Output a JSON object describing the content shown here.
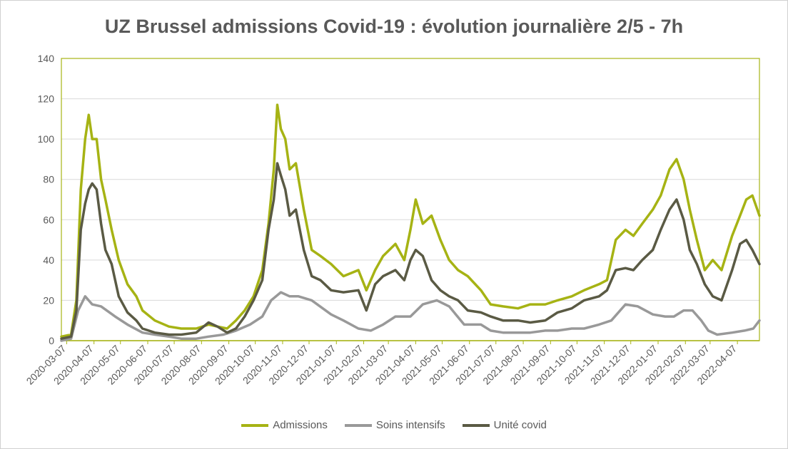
{
  "chart_data": {
    "type": "line",
    "title": "UZ Brussel admissions Covid-19 : évolution journalière 2/5 - 7h",
    "xlabel": "",
    "ylabel": "",
    "ylim": [
      0,
      140
    ],
    "yticks": [
      0,
      20,
      40,
      60,
      80,
      100,
      120,
      140
    ],
    "xlim": [
      "2020-03-01",
      "2022-05-02"
    ],
    "xtick_labels": [
      "2020-03-07",
      "2020-04-07",
      "2020-05-07",
      "2020-06-07",
      "2020-07-07",
      "2020-08-07",
      "2020-09-07",
      "2020-10-07",
      "2020-11-07",
      "2020-12-07",
      "2021-01-07",
      "2021-02-07",
      "2021-03-07",
      "2021-04-07",
      "2021-05-07",
      "2021-06-07",
      "2021-07-07",
      "2021-08-07",
      "2021-09-07",
      "2021-10-07",
      "2021-11-07",
      "2021-12-07",
      "2022-01-07",
      "2022-02-07",
      "2022-03-07",
      "2022-04-07"
    ],
    "grid": "horizontal",
    "legend_position": "bottom",
    "series": [
      {
        "name": "Admissions",
        "color": "#a6b314",
        "x": [
          "2020-03-01",
          "2020-03-12",
          "2020-03-18",
          "2020-03-23",
          "2020-03-28",
          "2020-04-01",
          "2020-04-05",
          "2020-04-10",
          "2020-04-15",
          "2020-04-20",
          "2020-04-27",
          "2020-05-05",
          "2020-05-15",
          "2020-05-25",
          "2020-06-01",
          "2020-06-15",
          "2020-07-01",
          "2020-07-15",
          "2020-08-01",
          "2020-08-15",
          "2020-08-25",
          "2020-09-05",
          "2020-09-15",
          "2020-09-25",
          "2020-10-05",
          "2020-10-15",
          "2020-10-22",
          "2020-10-28",
          "2020-11-01",
          "2020-11-05",
          "2020-11-10",
          "2020-11-15",
          "2020-11-22",
          "2020-12-01",
          "2020-12-10",
          "2020-12-20",
          "2021-01-01",
          "2021-01-15",
          "2021-02-01",
          "2021-02-10",
          "2021-02-20",
          "2021-03-01",
          "2021-03-15",
          "2021-03-25",
          "2021-04-01",
          "2021-04-07",
          "2021-04-15",
          "2021-04-25",
          "2021-05-05",
          "2021-05-15",
          "2021-05-25",
          "2021-06-05",
          "2021-06-20",
          "2021-07-01",
          "2021-07-15",
          "2021-08-01",
          "2021-08-15",
          "2021-09-01",
          "2021-09-15",
          "2021-10-01",
          "2021-10-15",
          "2021-11-01",
          "2021-11-10",
          "2021-11-20",
          "2021-12-01",
          "2021-12-10",
          "2021-12-20",
          "2022-01-01",
          "2022-01-10",
          "2022-01-20",
          "2022-01-28",
          "2022-02-05",
          "2022-02-12",
          "2022-02-20",
          "2022-03-01",
          "2022-03-10",
          "2022-03-20",
          "2022-04-01",
          "2022-04-10",
          "2022-04-17",
          "2022-04-24",
          "2022-05-02"
        ],
        "values": [
          2,
          3,
          20,
          75,
          100,
          112,
          100,
          100,
          80,
          70,
          55,
          40,
          28,
          22,
          15,
          10,
          7,
          6,
          6,
          8,
          7,
          6,
          10,
          15,
          22,
          35,
          58,
          85,
          117,
          105,
          100,
          85,
          88,
          65,
          45,
          42,
          38,
          32,
          35,
          25,
          35,
          42,
          48,
          40,
          55,
          70,
          58,
          62,
          50,
          40,
          35,
          32,
          25,
          18,
          17,
          16,
          18,
          18,
          20,
          22,
          25,
          28,
          30,
          50,
          55,
          52,
          58,
          65,
          72,
          85,
          90,
          80,
          65,
          50,
          35,
          40,
          35,
          52,
          62,
          70,
          72,
          62
        ]
      },
      {
        "name": "Soins intensifs",
        "color": "#999999",
        "x": [
          "2020-03-01",
          "2020-03-12",
          "2020-03-20",
          "2020-03-28",
          "2020-04-05",
          "2020-04-15",
          "2020-05-01",
          "2020-05-15",
          "2020-06-01",
          "2020-06-15",
          "2020-07-01",
          "2020-07-15",
          "2020-08-01",
          "2020-08-15",
          "2020-09-01",
          "2020-09-15",
          "2020-10-01",
          "2020-10-15",
          "2020-10-25",
          "2020-11-05",
          "2020-11-15",
          "2020-11-25",
          "2020-12-10",
          "2021-01-01",
          "2021-01-15",
          "2021-02-01",
          "2021-02-15",
          "2021-03-01",
          "2021-03-15",
          "2021-04-01",
          "2021-04-15",
          "2021-05-01",
          "2021-05-15",
          "2021-06-01",
          "2021-06-20",
          "2021-07-01",
          "2021-07-15",
          "2021-08-01",
          "2021-08-15",
          "2021-09-01",
          "2021-09-15",
          "2021-10-01",
          "2021-10-15",
          "2021-11-01",
          "2021-11-15",
          "2021-12-01",
          "2021-12-15",
          "2022-01-01",
          "2022-01-15",
          "2022-01-25",
          "2022-02-05",
          "2022-02-15",
          "2022-02-25",
          "2022-03-05",
          "2022-03-15",
          "2022-04-01",
          "2022-04-15",
          "2022-04-25",
          "2022-05-02"
        ],
        "values": [
          0,
          1,
          15,
          22,
          18,
          17,
          12,
          8,
          4,
          3,
          2,
          1,
          1,
          2,
          3,
          5,
          8,
          12,
          20,
          24,
          22,
          22,
          20,
          13,
          10,
          6,
          5,
          8,
          12,
          12,
          18,
          20,
          17,
          8,
          8,
          5,
          4,
          4,
          4,
          5,
          5,
          6,
          6,
          8,
          10,
          18,
          17,
          13,
          12,
          12,
          15,
          15,
          10,
          5,
          3,
          4,
          5,
          6,
          10
        ]
      },
      {
        "name": "Unité covid",
        "color": "#5a5a44",
        "x": [
          "2020-03-01",
          "2020-03-12",
          "2020-03-18",
          "2020-03-23",
          "2020-03-28",
          "2020-04-01",
          "2020-04-05",
          "2020-04-10",
          "2020-04-15",
          "2020-04-20",
          "2020-04-27",
          "2020-05-05",
          "2020-05-15",
          "2020-05-25",
          "2020-06-01",
          "2020-06-15",
          "2020-07-01",
          "2020-07-15",
          "2020-08-01",
          "2020-08-15",
          "2020-08-25",
          "2020-09-05",
          "2020-09-15",
          "2020-09-25",
          "2020-10-05",
          "2020-10-15",
          "2020-10-22",
          "2020-10-28",
          "2020-11-01",
          "2020-11-05",
          "2020-11-10",
          "2020-11-15",
          "2020-11-22",
          "2020-12-01",
          "2020-12-10",
          "2020-12-20",
          "2021-01-01",
          "2021-01-15",
          "2021-02-01",
          "2021-02-10",
          "2021-02-20",
          "2021-03-01",
          "2021-03-15",
          "2021-03-25",
          "2021-04-01",
          "2021-04-07",
          "2021-04-15",
          "2021-04-25",
          "2021-05-05",
          "2021-05-15",
          "2021-05-25",
          "2021-06-05",
          "2021-06-20",
          "2021-07-01",
          "2021-07-15",
          "2021-08-01",
          "2021-08-15",
          "2021-09-01",
          "2021-09-15",
          "2021-10-01",
          "2021-10-15",
          "2021-11-01",
          "2021-11-10",
          "2021-11-20",
          "2021-12-01",
          "2021-12-10",
          "2021-12-20",
          "2022-01-01",
          "2022-01-10",
          "2022-01-20",
          "2022-01-28",
          "2022-02-05",
          "2022-02-12",
          "2022-02-20",
          "2022-03-01",
          "2022-03-10",
          "2022-03-20",
          "2022-04-01",
          "2022-04-10",
          "2022-04-17",
          "2022-04-24",
          "2022-05-02"
        ],
        "values": [
          1,
          2,
          15,
          55,
          68,
          75,
          78,
          75,
          58,
          45,
          38,
          22,
          14,
          10,
          6,
          4,
          3,
          3,
          4,
          9,
          7,
          4,
          6,
          12,
          20,
          30,
          55,
          70,
          88,
          82,
          75,
          62,
          65,
          45,
          32,
          30,
          25,
          24,
          25,
          15,
          28,
          32,
          35,
          30,
          40,
          45,
          42,
          30,
          25,
          22,
          20,
          15,
          14,
          12,
          10,
          10,
          9,
          10,
          14,
          16,
          20,
          22,
          25,
          35,
          36,
          35,
          40,
          45,
          55,
          65,
          70,
          60,
          45,
          38,
          28,
          22,
          20,
          35,
          48,
          50,
          45,
          38
        ]
      }
    ]
  }
}
